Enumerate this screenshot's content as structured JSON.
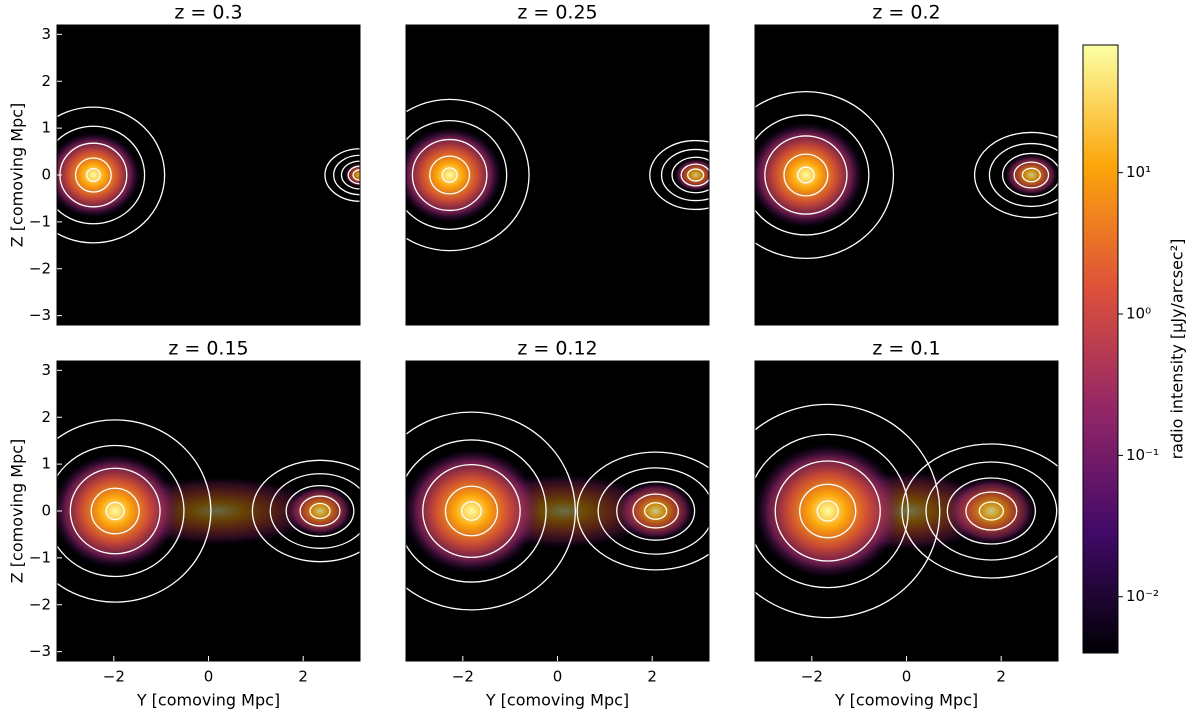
{
  "chart_data": [
    {
      "type": "image",
      "title": "z = 0.3",
      "xlim": [
        -3.2,
        3.2
      ],
      "ylim": [
        -3.2,
        3.2
      ],
      "yticks": [
        {
          "value": -3,
          "label": "−3"
        },
        {
          "value": -2,
          "label": "−2"
        },
        {
          "value": -1,
          "label": "−1"
        },
        0,
        1,
        2,
        3
      ],
      "ylabel": "Z [comoving Mpc]"
    },
    {
      "type": "image",
      "title": "z = 0.25",
      "xlim": [
        -3.2,
        3.2
      ],
      "ylim": [
        -3.2,
        3.2
      ]
    },
    {
      "type": "image",
      "title": "z = 0.2",
      "xlim": [
        -3.2,
        3.2
      ],
      "ylim": [
        -3.2,
        3.2
      ]
    },
    {
      "type": "image",
      "title": "z = 0.15",
      "xlim": [
        -3.2,
        3.2
      ],
      "ylim": [
        -3.2,
        3.2
      ],
      "xticks": [
        {
          "value": -2,
          "label": "−2"
        },
        0,
        2
      ],
      "yticks": [
        {
          "value": -3,
          "label": "−3"
        },
        {
          "value": -2,
          "label": "−2"
        },
        {
          "value": -1,
          "label": "−1"
        },
        0,
        1,
        2,
        3
      ],
      "xlabel": "Y [comoving Mpc]",
      "ylabel": "Z [comoving Mpc]"
    },
    {
      "type": "image",
      "title": "z = 0.12",
      "xlim": [
        -3.2,
        3.2
      ],
      "ylim": [
        -3.2,
        3.2
      ],
      "xticks": [
        {
          "value": -2,
          "label": "−2"
        },
        0,
        2
      ],
      "xlabel": "Y [comoving Mpc]"
    },
    {
      "type": "image",
      "title": "z = 0.1",
      "xlim": [
        -3.2,
        3.2
      ],
      "ylim": [
        -3.2,
        3.2
      ],
      "xticks": [
        {
          "value": -2,
          "label": "−2"
        },
        0,
        2
      ],
      "xlabel": "Y [comoving Mpc]"
    },
    {
      "type": "colorbar",
      "label": "radio intensity [μJy/arcsec²]",
      "log": true,
      "clim": [
        0.004,
        80
      ],
      "colors": [
        "#000004",
        "#420a68",
        "#932667",
        "#dd513a",
        "#fca50a",
        "#fcffa4"
      ],
      "ticks": [
        {
          "value": 0.01,
          "label": "10⁻²"
        },
        {
          "value": 0.1,
          "label": "10⁻¹"
        },
        {
          "value": 1,
          "label": "10⁰"
        },
        {
          "value": 10,
          "label": "10¹"
        }
      ]
    }
  ]
}
